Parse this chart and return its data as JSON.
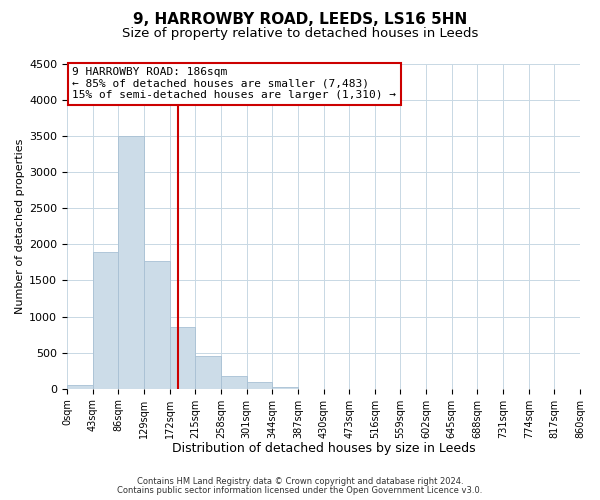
{
  "title": "9, HARROWBY ROAD, LEEDS, LS16 5HN",
  "subtitle": "Size of property relative to detached houses in Leeds",
  "xlabel": "Distribution of detached houses by size in Leeds",
  "ylabel": "Number of detached properties",
  "bin_edges": [
    0,
    43,
    86,
    129,
    172,
    215,
    258,
    301,
    344,
    387,
    430,
    473,
    516,
    559,
    602,
    645,
    688,
    731,
    774,
    817,
    860
  ],
  "bar_heights": [
    50,
    1900,
    3500,
    1775,
    850,
    450,
    175,
    90,
    30,
    0,
    0,
    0,
    0,
    0,
    0,
    0,
    0,
    0,
    0,
    0
  ],
  "bar_color": "#ccdce8",
  "bar_edge_color": "#a8c0d4",
  "property_size": 186,
  "vline_color": "#cc0000",
  "ylim": [
    0,
    4500
  ],
  "yticks": [
    0,
    500,
    1000,
    1500,
    2000,
    2500,
    3000,
    3500,
    4000,
    4500
  ],
  "annotation_title": "9 HARROWBY ROAD: 186sqm",
  "annotation_line1": "← 85% of detached houses are smaller (7,483)",
  "annotation_line2": "15% of semi-detached houses are larger (1,310) →",
  "annotation_box_facecolor": "#ffffff",
  "annotation_box_edgecolor": "#cc0000",
  "footer1": "Contains HM Land Registry data © Crown copyright and database right 2024.",
  "footer2": "Contains public sector information licensed under the Open Government Licence v3.0.",
  "background_color": "#ffffff",
  "grid_color": "#c8d8e4",
  "title_fontsize": 11,
  "subtitle_fontsize": 9.5,
  "xlabel_fontsize": 9,
  "ylabel_fontsize": 8,
  "tick_label_fontsize": 7,
  "annot_fontsize": 8,
  "footer_fontsize": 6,
  "tick_labels": [
    "0sqm",
    "43sqm",
    "86sqm",
    "129sqm",
    "172sqm",
    "215sqm",
    "258sqm",
    "301sqm",
    "344sqm",
    "387sqm",
    "430sqm",
    "473sqm",
    "516sqm",
    "559sqm",
    "602sqm",
    "645sqm",
    "688sqm",
    "731sqm",
    "774sqm",
    "817sqm",
    "860sqm"
  ]
}
